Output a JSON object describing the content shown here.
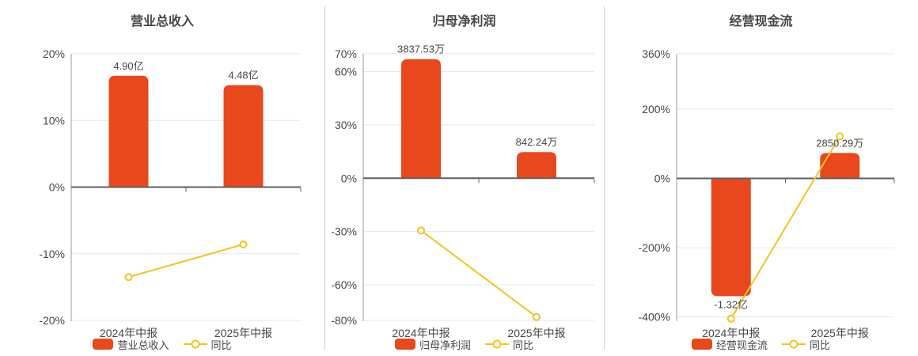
{
  "ui": {
    "background": "#ffffff",
    "bar_color": "#e8481c",
    "line_color": "#f2c41d",
    "grid_color": "#e0e6f1",
    "axis_line_color": "#999999",
    "zero_line_color": "#5e5e5e",
    "text_color": "#464646",
    "divider_color": "#cccccc"
  },
  "chart_data": [
    {
      "type": "bar",
      "title": "营业总收入",
      "categories": [
        "2024年中报",
        "2025年中报"
      ],
      "bar_series": {
        "name": "营业总收入",
        "value_labels": [
          "4.90亿",
          "4.48亿"
        ],
        "heights_axis_pct": [
          16.7,
          15.3
        ]
      },
      "line_series": {
        "name": "同比",
        "values_pct": [
          -13.5,
          -8.6
        ]
      },
      "yaxis": {
        "tick_values": [
          20,
          10,
          0,
          -10,
          -20
        ],
        "tick_labels": [
          "20%",
          "10%",
          "0%",
          "-10%",
          "-20%"
        ],
        "vmax": 20,
        "vmin": -20
      },
      "legend_position": "bottom",
      "grid": true
    },
    {
      "type": "bar",
      "title": "归母净利润",
      "categories": [
        "2024年中报",
        "2025年中报"
      ],
      "bar_series": {
        "name": "归母净利润",
        "value_labels": [
          "3837.53万",
          "842.24万"
        ],
        "heights_axis_pct": [
          67,
          14.7
        ]
      },
      "line_series": {
        "name": "同比",
        "values_pct": [
          -29.4,
          -78.1
        ]
      },
      "yaxis": {
        "tick_values": [
          70,
          60,
          30,
          0,
          -30,
          -60,
          -80
        ],
        "tick_labels": [
          "70%",
          "60%",
          "30%",
          "0%",
          "-30%",
          "-60%",
          "-80%"
        ],
        "vmax": 70,
        "vmin": -80
      },
      "legend_position": "bottom",
      "grid": true
    },
    {
      "type": "bar",
      "title": "经营现金流",
      "categories": [
        "2024年中报",
        "2025年中报"
      ],
      "bar_series": {
        "name": "经营现金流",
        "value_labels": [
          "-1.32亿",
          "2850.29万"
        ],
        "heights_axis_pct": [
          -340,
          73.4
        ]
      },
      "line_series": {
        "name": "同比",
        "values_pct": [
          -405,
          121.6
        ]
      },
      "yaxis": {
        "tick_values": [
          360,
          200,
          0,
          -200,
          -400
        ],
        "tick_labels": [
          "360%",
          "200%",
          "0%",
          "-200%",
          "-400%"
        ],
        "vmax": 360,
        "vmin": -410
      },
      "legend_position": "bottom",
      "grid": true
    }
  ]
}
